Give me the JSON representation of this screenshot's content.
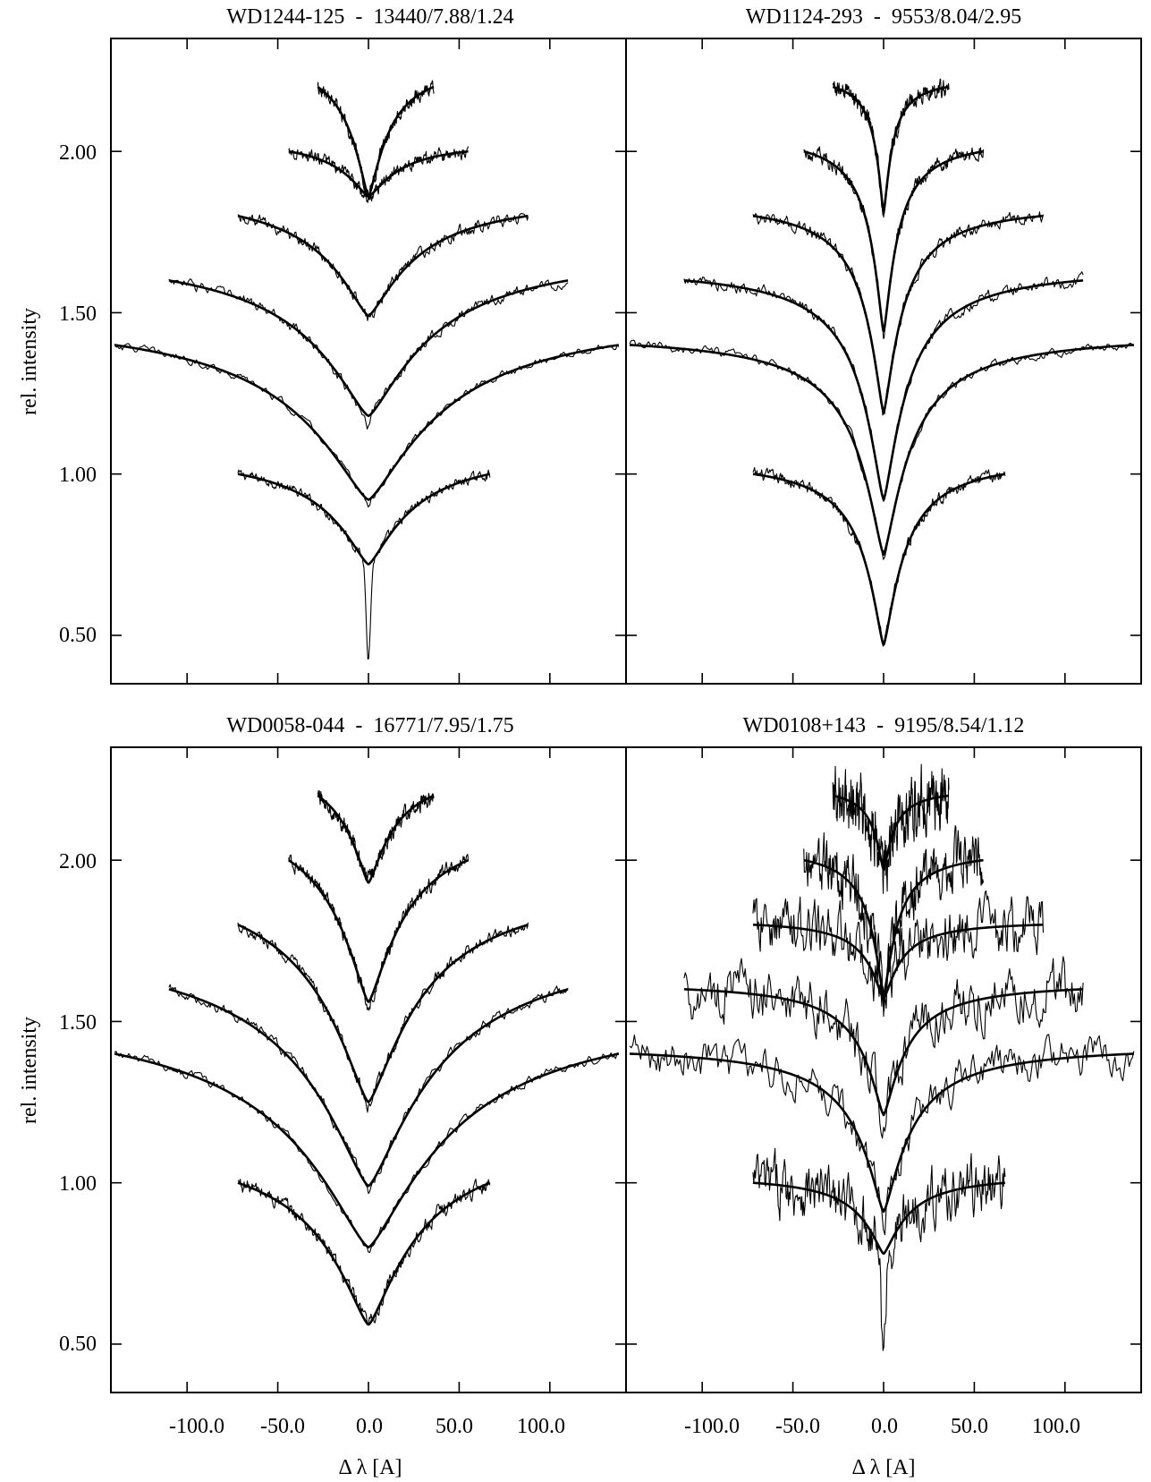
{
  "chart_data": {
    "type": "line",
    "layout": "2x2 panels, shared x axis per column, shared y axis per row",
    "grid": false,
    "legend": "none",
    "xlabel": "Δ λ [A]",
    "ylabel": "rel. intensity",
    "xlim": [
      -142,
      142
    ],
    "ylim": [
      0.35,
      2.35
    ],
    "xticks": [
      -100.0,
      -50.0,
      0.0,
      50.0,
      100.0
    ],
    "xtick_labels": [
      "-100.0",
      "-50.0",
      "0.0",
      "50.0",
      "100.0"
    ],
    "yticks": [
      0.5,
      1.0,
      1.5,
      2.0
    ],
    "ytick_labels": [
      "0.50",
      "1.00",
      "1.50",
      "2.00"
    ],
    "panels": [
      {
        "title": "WD1244-125  -  13440/7.88/1.24",
        "lines": [
          {
            "half_width": 67,
            "continuum": 1.0,
            "core": 0.72,
            "obs_core": 0.43,
            "left_width": 72,
            "right_width": 67,
            "width": 26,
            "noise": 0.006
          },
          {
            "half_width": 140,
            "continuum": 1.4,
            "core": 0.92,
            "obs_core": 0.9,
            "left_width": 140,
            "right_width": 138,
            "width": 45,
            "noise": 0.005
          },
          {
            "half_width": 110,
            "continuum": 1.6,
            "core": 1.18,
            "obs_core": 1.15,
            "left_width": 110,
            "right_width": 110,
            "width": 38,
            "noise": 0.007
          },
          {
            "half_width": 87,
            "continuum": 1.8,
            "core": 1.49,
            "obs_core": 1.48,
            "left_width": 72,
            "right_width": 88,
            "width": 28,
            "noise": 0.008
          },
          {
            "half_width": 54,
            "continuum": 2.0,
            "core": 1.86,
            "obs_core": 1.85,
            "left_width": 44,
            "right_width": 55,
            "width": 18,
            "noise": 0.008
          },
          {
            "half_width": 36,
            "continuum": 2.2,
            "core": 1.86,
            "obs_core": 1.86,
            "left_width": 28,
            "right_width": 36,
            "width": 12,
            "noise": 0.008
          }
        ]
      },
      {
        "title": "WD1124-293  -  9553/8.04/2.95",
        "lines": [
          {
            "half_width": 67,
            "continuum": 1.0,
            "core": 0.47,
            "obs_core": 0.46,
            "left_width": 72,
            "right_width": 67,
            "width": 12,
            "noise": 0.008
          },
          {
            "half_width": 140,
            "continuum": 1.4,
            "core": 0.75,
            "obs_core": 0.74,
            "left_width": 140,
            "right_width": 138,
            "width": 16,
            "noise": 0.006
          },
          {
            "half_width": 110,
            "continuum": 1.6,
            "core": 0.92,
            "obs_core": 0.91,
            "left_width": 110,
            "right_width": 110,
            "width": 14,
            "noise": 0.008
          },
          {
            "half_width": 87,
            "continuum": 1.8,
            "core": 1.19,
            "obs_core": 1.18,
            "left_width": 72,
            "right_width": 88,
            "width": 11,
            "noise": 0.008
          },
          {
            "half_width": 54,
            "continuum": 2.0,
            "core": 1.44,
            "obs_core": 1.43,
            "left_width": 44,
            "right_width": 55,
            "width": 8,
            "noise": 0.009
          },
          {
            "half_width": 36,
            "continuum": 2.2,
            "core": 1.81,
            "obs_core": 1.8,
            "left_width": 28,
            "right_width": 36,
            "width": 5,
            "noise": 0.01
          }
        ]
      },
      {
        "title": "WD0058-044  -  16771/7.95/1.75",
        "lines": [
          {
            "half_width": 67,
            "continuum": 1.0,
            "core": 0.56,
            "obs_core": 0.56,
            "left_width": 72,
            "right_width": 67,
            "width": 30,
            "noise": 0.01
          },
          {
            "half_width": 140,
            "continuum": 1.4,
            "core": 0.8,
            "obs_core": 0.79,
            "left_width": 140,
            "right_width": 138,
            "width": 50,
            "noise": 0.006
          },
          {
            "half_width": 110,
            "continuum": 1.6,
            "core": 0.99,
            "obs_core": 0.98,
            "left_width": 110,
            "right_width": 110,
            "width": 42,
            "noise": 0.007
          },
          {
            "half_width": 87,
            "continuum": 1.8,
            "core": 1.25,
            "obs_core": 1.24,
            "left_width": 72,
            "right_width": 88,
            "width": 32,
            "noise": 0.008
          },
          {
            "half_width": 54,
            "continuum": 2.0,
            "core": 1.56,
            "obs_core": 1.55,
            "left_width": 44,
            "right_width": 55,
            "width": 22,
            "noise": 0.009
          },
          {
            "half_width": 36,
            "continuum": 2.2,
            "core": 1.93,
            "obs_core": 1.95,
            "left_width": 28,
            "right_width": 36,
            "width": 15,
            "noise": 0.01
          }
        ]
      },
      {
        "title": "WD0108+143  -  9195/8.54/1.12",
        "lines": [
          {
            "half_width": 67,
            "continuum": 1.0,
            "core": 0.78,
            "obs_core": 0.44,
            "left_width": 72,
            "right_width": 67,
            "width": 14,
            "noise": 0.035
          },
          {
            "half_width": 140,
            "continuum": 1.4,
            "core": 0.91,
            "obs_core": 0.9,
            "left_width": 140,
            "right_width": 138,
            "width": 16,
            "noise": 0.025
          },
          {
            "half_width": 110,
            "continuum": 1.6,
            "core": 1.21,
            "obs_core": 1.2,
            "left_width": 110,
            "right_width": 110,
            "width": 13,
            "noise": 0.035
          },
          {
            "half_width": 87,
            "continuum": 1.8,
            "core": 1.57,
            "obs_core": 1.56,
            "left_width": 72,
            "right_width": 88,
            "width": 10,
            "noise": 0.035
          },
          {
            "half_width": 54,
            "continuum": 2.0,
            "core": 1.58,
            "obs_core": 1.57,
            "left_width": 44,
            "right_width": 55,
            "width": 8,
            "noise": 0.035
          },
          {
            "half_width": 36,
            "continuum": 2.2,
            "core": 1.97,
            "obs_core": 1.96,
            "left_width": 28,
            "right_width": 36,
            "width": 6,
            "noise": 0.04
          }
        ]
      }
    ]
  }
}
